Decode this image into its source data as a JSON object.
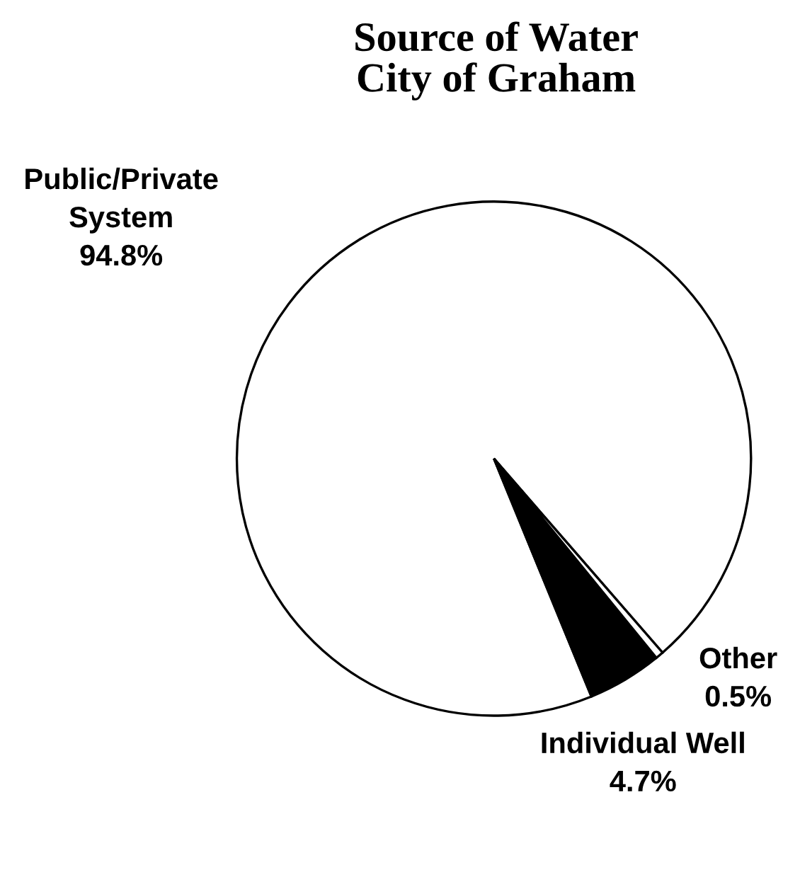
{
  "chart_data": {
    "type": "pie",
    "title": "Source of Water\nCity of Graham",
    "categories": [
      "Public/Private\nSystem",
      "Individual Well",
      "Other"
    ],
    "values": [
      94.8,
      4.7,
      0.5
    ],
    "colors": [
      "#ffffff",
      "#000000",
      "#ffffff"
    ],
    "value_labels": [
      "94.8%",
      "4.7%",
      "0.5%"
    ],
    "legend": false
  }
}
